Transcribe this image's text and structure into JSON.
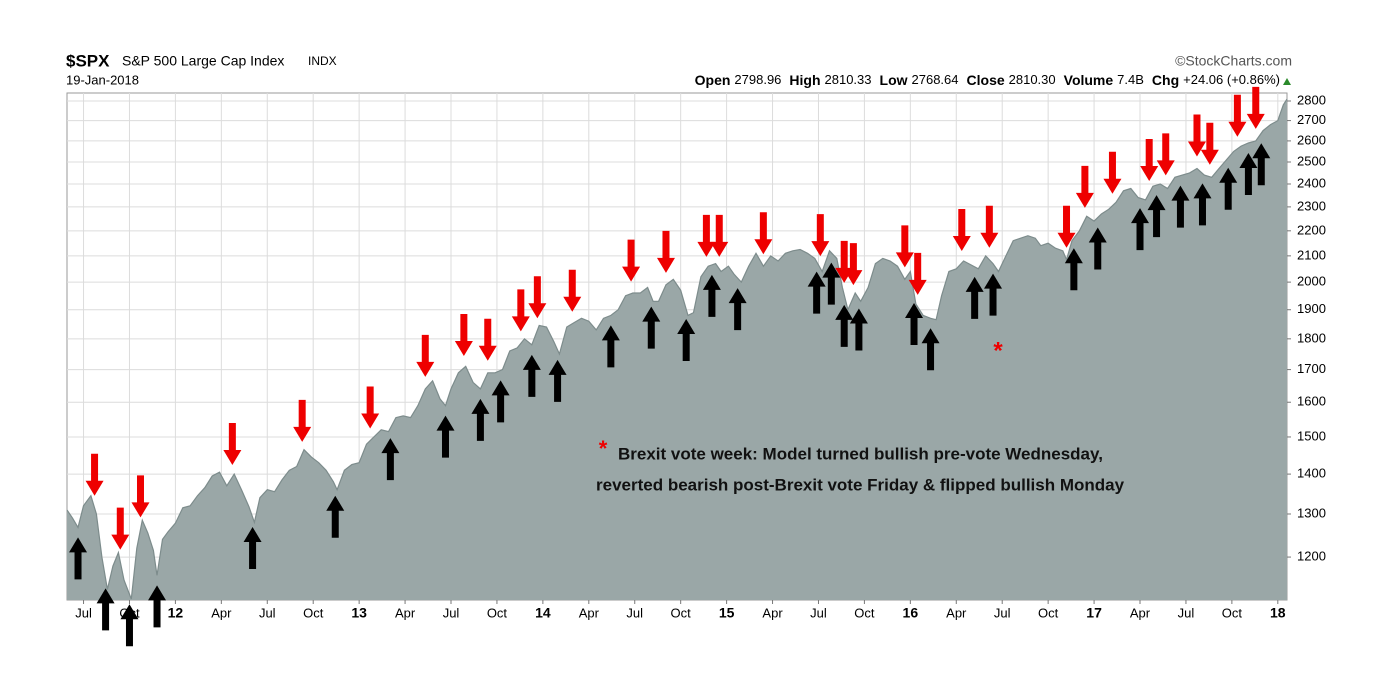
{
  "chart_data": {
    "type": "area",
    "symbol": "$SPX",
    "title": "S&P 500 Large Cap Index",
    "exchange": "INDX",
    "date": "19-Jan-2018",
    "source": "©StockCharts.com",
    "quote": [
      {
        "label": "Open",
        "value": "2798.96"
      },
      {
        "label": "High",
        "value": "2810.33"
      },
      {
        "label": "Low",
        "value": "2768.64"
      },
      {
        "label": "Close",
        "value": "2810.30"
      },
      {
        "label": "Volume",
        "value": "7.4B"
      },
      {
        "label": "Chg",
        "value": "+24.06 (+0.86%)"
      }
    ],
    "color": "#9aa7a7",
    "line_color": "#7d8c8c",
    "sell_color": "#ee0000",
    "buy_color": "#000000",
    "log_scale": true,
    "grid": true,
    "xlim": [
      2011.41,
      2018.05
    ],
    "ylim": [
      1108,
      2842
    ],
    "yticks": [
      1200,
      1300,
      1400,
      1500,
      1600,
      1700,
      1800,
      1900,
      2000,
      2100,
      2200,
      2300,
      2400,
      2500,
      2600,
      2700,
      2800
    ],
    "xticks": [
      {
        "value": 2011.5,
        "label": "Jul"
      },
      {
        "value": 2011.75,
        "label": "Oct"
      },
      {
        "value": 2012,
        "label": "12"
      },
      {
        "value": 2012.25,
        "label": "Apr"
      },
      {
        "value": 2012.5,
        "label": "Jul"
      },
      {
        "value": 2012.75,
        "label": "Oct"
      },
      {
        "value": 2013,
        "label": "13"
      },
      {
        "value": 2013.25,
        "label": "Apr"
      },
      {
        "value": 2013.5,
        "label": "Jul"
      },
      {
        "value": 2013.75,
        "label": "Oct"
      },
      {
        "value": 2014,
        "label": "14"
      },
      {
        "value": 2014.25,
        "label": "Apr"
      },
      {
        "value": 2014.5,
        "label": "Jul"
      },
      {
        "value": 2014.75,
        "label": "Oct"
      },
      {
        "value": 2015,
        "label": "15"
      },
      {
        "value": 2015.25,
        "label": "Apr"
      },
      {
        "value": 2015.5,
        "label": "Jul"
      },
      {
        "value": 2015.75,
        "label": "Oct"
      },
      {
        "value": 2016,
        "label": "16"
      },
      {
        "value": 2016.25,
        "label": "Apr"
      },
      {
        "value": 2016.5,
        "label": "Jul"
      },
      {
        "value": 2016.75,
        "label": "Oct"
      },
      {
        "value": 2017,
        "label": "17"
      },
      {
        "value": 2017.25,
        "label": "Apr"
      },
      {
        "value": 2017.5,
        "label": "Jul"
      },
      {
        "value": 2017.75,
        "label": "Oct"
      },
      {
        "value": 2018,
        "label": "18"
      }
    ],
    "x": [
      2011.41,
      2011.44,
      2011.47,
      2011.5,
      2011.54,
      2011.57,
      2011.6,
      2011.63,
      2011.66,
      2011.69,
      2011.72,
      2011.76,
      2011.79,
      2011.82,
      2011.85,
      2011.88,
      2011.9,
      2011.93,
      2011.96,
      2012.0,
      2012.04,
      2012.08,
      2012.12,
      2012.16,
      2012.2,
      2012.24,
      2012.28,
      2012.32,
      2012.36,
      2012.4,
      2012.43,
      2012.46,
      2012.5,
      2012.54,
      2012.58,
      2012.62,
      2012.66,
      2012.7,
      2012.74,
      2012.78,
      2012.82,
      2012.86,
      2012.88,
      2012.92,
      2012.96,
      2013.0,
      2013.04,
      2013.08,
      2013.12,
      2013.16,
      2013.2,
      2013.24,
      2013.28,
      2013.32,
      2013.36,
      2013.4,
      2013.44,
      2013.47,
      2013.5,
      2013.54,
      2013.58,
      2013.62,
      2013.66,
      2013.7,
      2013.74,
      2013.78,
      2013.82,
      2013.86,
      2013.9,
      2013.94,
      2013.98,
      2014.02,
      2014.06,
      2014.09,
      2014.13,
      2014.17,
      2014.21,
      2014.25,
      2014.29,
      2014.33,
      2014.37,
      2014.41,
      2014.45,
      2014.49,
      2014.53,
      2014.57,
      2014.6,
      2014.63,
      2014.67,
      2014.71,
      2014.75,
      2014.79,
      2014.82,
      2014.86,
      2014.9,
      2014.94,
      2014.97,
      2015.01,
      2015.04,
      2015.08,
      2015.12,
      2015.16,
      2015.2,
      2015.24,
      2015.28,
      2015.32,
      2015.36,
      2015.4,
      2015.44,
      2015.48,
      2015.52,
      2015.56,
      2015.6,
      2015.63,
      2015.66,
      2015.7,
      2015.73,
      2015.77,
      2015.81,
      2015.85,
      2015.89,
      2015.93,
      2015.97,
      2016.0,
      2016.03,
      2016.07,
      2016.11,
      2016.14,
      2016.17,
      2016.21,
      2016.25,
      2016.29,
      2016.33,
      2016.37,
      2016.41,
      2016.45,
      2016.48,
      2016.52,
      2016.56,
      2016.6,
      2016.64,
      2016.68,
      2016.71,
      2016.75,
      2016.79,
      2016.83,
      2016.85,
      2016.88,
      2016.92,
      2016.96,
      2017.0,
      2017.04,
      2017.08,
      2017.12,
      2017.16,
      2017.2,
      2017.24,
      2017.28,
      2017.32,
      2017.36,
      2017.4,
      2017.44,
      2017.48,
      2017.52,
      2017.56,
      2017.6,
      2017.64,
      2017.68,
      2017.72,
      2017.76,
      2017.8,
      2017.84,
      2017.88,
      2017.92,
      2017.96,
      2018.0,
      2018.03,
      2018.05
    ],
    "values": [
      1310,
      1290,
      1268,
      1320,
      1345,
      1300,
      1200,
      1130,
      1180,
      1210,
      1150,
      1110,
      1220,
      1285,
      1255,
      1215,
      1160,
      1240,
      1258,
      1278,
      1315,
      1320,
      1345,
      1365,
      1395,
      1405,
      1370,
      1400,
      1360,
      1318,
      1280,
      1340,
      1360,
      1355,
      1385,
      1410,
      1420,
      1465,
      1445,
      1430,
      1410,
      1380,
      1360,
      1410,
      1425,
      1430,
      1480,
      1500,
      1520,
      1515,
      1555,
      1560,
      1555,
      1590,
      1640,
      1665,
      1610,
      1590,
      1640,
      1690,
      1710,
      1660,
      1640,
      1690,
      1690,
      1700,
      1760,
      1770,
      1800,
      1780,
      1845,
      1840,
      1790,
      1750,
      1840,
      1855,
      1870,
      1860,
      1830,
      1870,
      1880,
      1900,
      1950,
      1960,
      1960,
      1980,
      1930,
      1930,
      1990,
      2010,
      1970,
      1880,
      1890,
      2020,
      2060,
      2070,
      2040,
      2060,
      2030,
      2000,
      2060,
      2110,
      2060,
      2100,
      2080,
      2110,
      2120,
      2125,
      2110,
      2090,
      2040,
      2120,
      2090,
      1980,
      1900,
      1960,
      1930,
      1980,
      2070,
      2090,
      2080,
      2060,
      2010,
      2040,
      1920,
      1880,
      1870,
      1865,
      1950,
      2040,
      2050,
      2080,
      2065,
      2050,
      2100,
      2070,
      2040,
      2100,
      2160,
      2170,
      2180,
      2170,
      2140,
      2150,
      2130,
      2120,
      2085,
      2160,
      2200,
      2260,
      2240,
      2270,
      2290,
      2320,
      2370,
      2380,
      2340,
      2330,
      2390,
      2400,
      2380,
      2430,
      2440,
      2450,
      2470,
      2440,
      2430,
      2470,
      2510,
      2550,
      2575,
      2590,
      2600,
      2650,
      2680,
      2700,
      2780,
      2810
    ],
    "sell_signals": [
      2011.56,
      2011.7,
      2011.81,
      2012.31,
      2012.69,
      2013.06,
      2013.36,
      2013.57,
      2013.7,
      2013.88,
      2013.97,
      2014.16,
      2014.48,
      2014.67,
      2014.89,
      2014.96,
      2015.2,
      2015.51,
      2015.64,
      2015.69,
      2015.97,
      2016.04,
      2016.28,
      2016.43,
      2016.85,
      2016.95,
      2017.1,
      2017.3,
      2017.39,
      2017.56,
      2017.63,
      2017.78,
      2017.88
    ],
    "buy_signals": [
      2011.47,
      2011.62,
      2011.75,
      2011.9,
      2012.42,
      2012.87,
      2013.17,
      2013.47,
      2013.66,
      2013.77,
      2013.94,
      2014.08,
      2014.37,
      2014.59,
      2014.78,
      2014.92,
      2015.06,
      2015.49,
      2015.57,
      2015.64,
      2015.72,
      2016.02,
      2016.11,
      2016.35,
      2016.45,
      2016.89,
      2017.02,
      2017.25,
      2017.34,
      2017.47,
      2017.59,
      2017.73,
      2017.84,
      2017.91
    ],
    "annotation": {
      "marker": "*",
      "lines": [
        "Brexit vote week: Model turned bullish pre-vote Wednesday,",
        "reverted bearish post-Brexit vote Friday & flipped bullish Monday"
      ]
    }
  }
}
